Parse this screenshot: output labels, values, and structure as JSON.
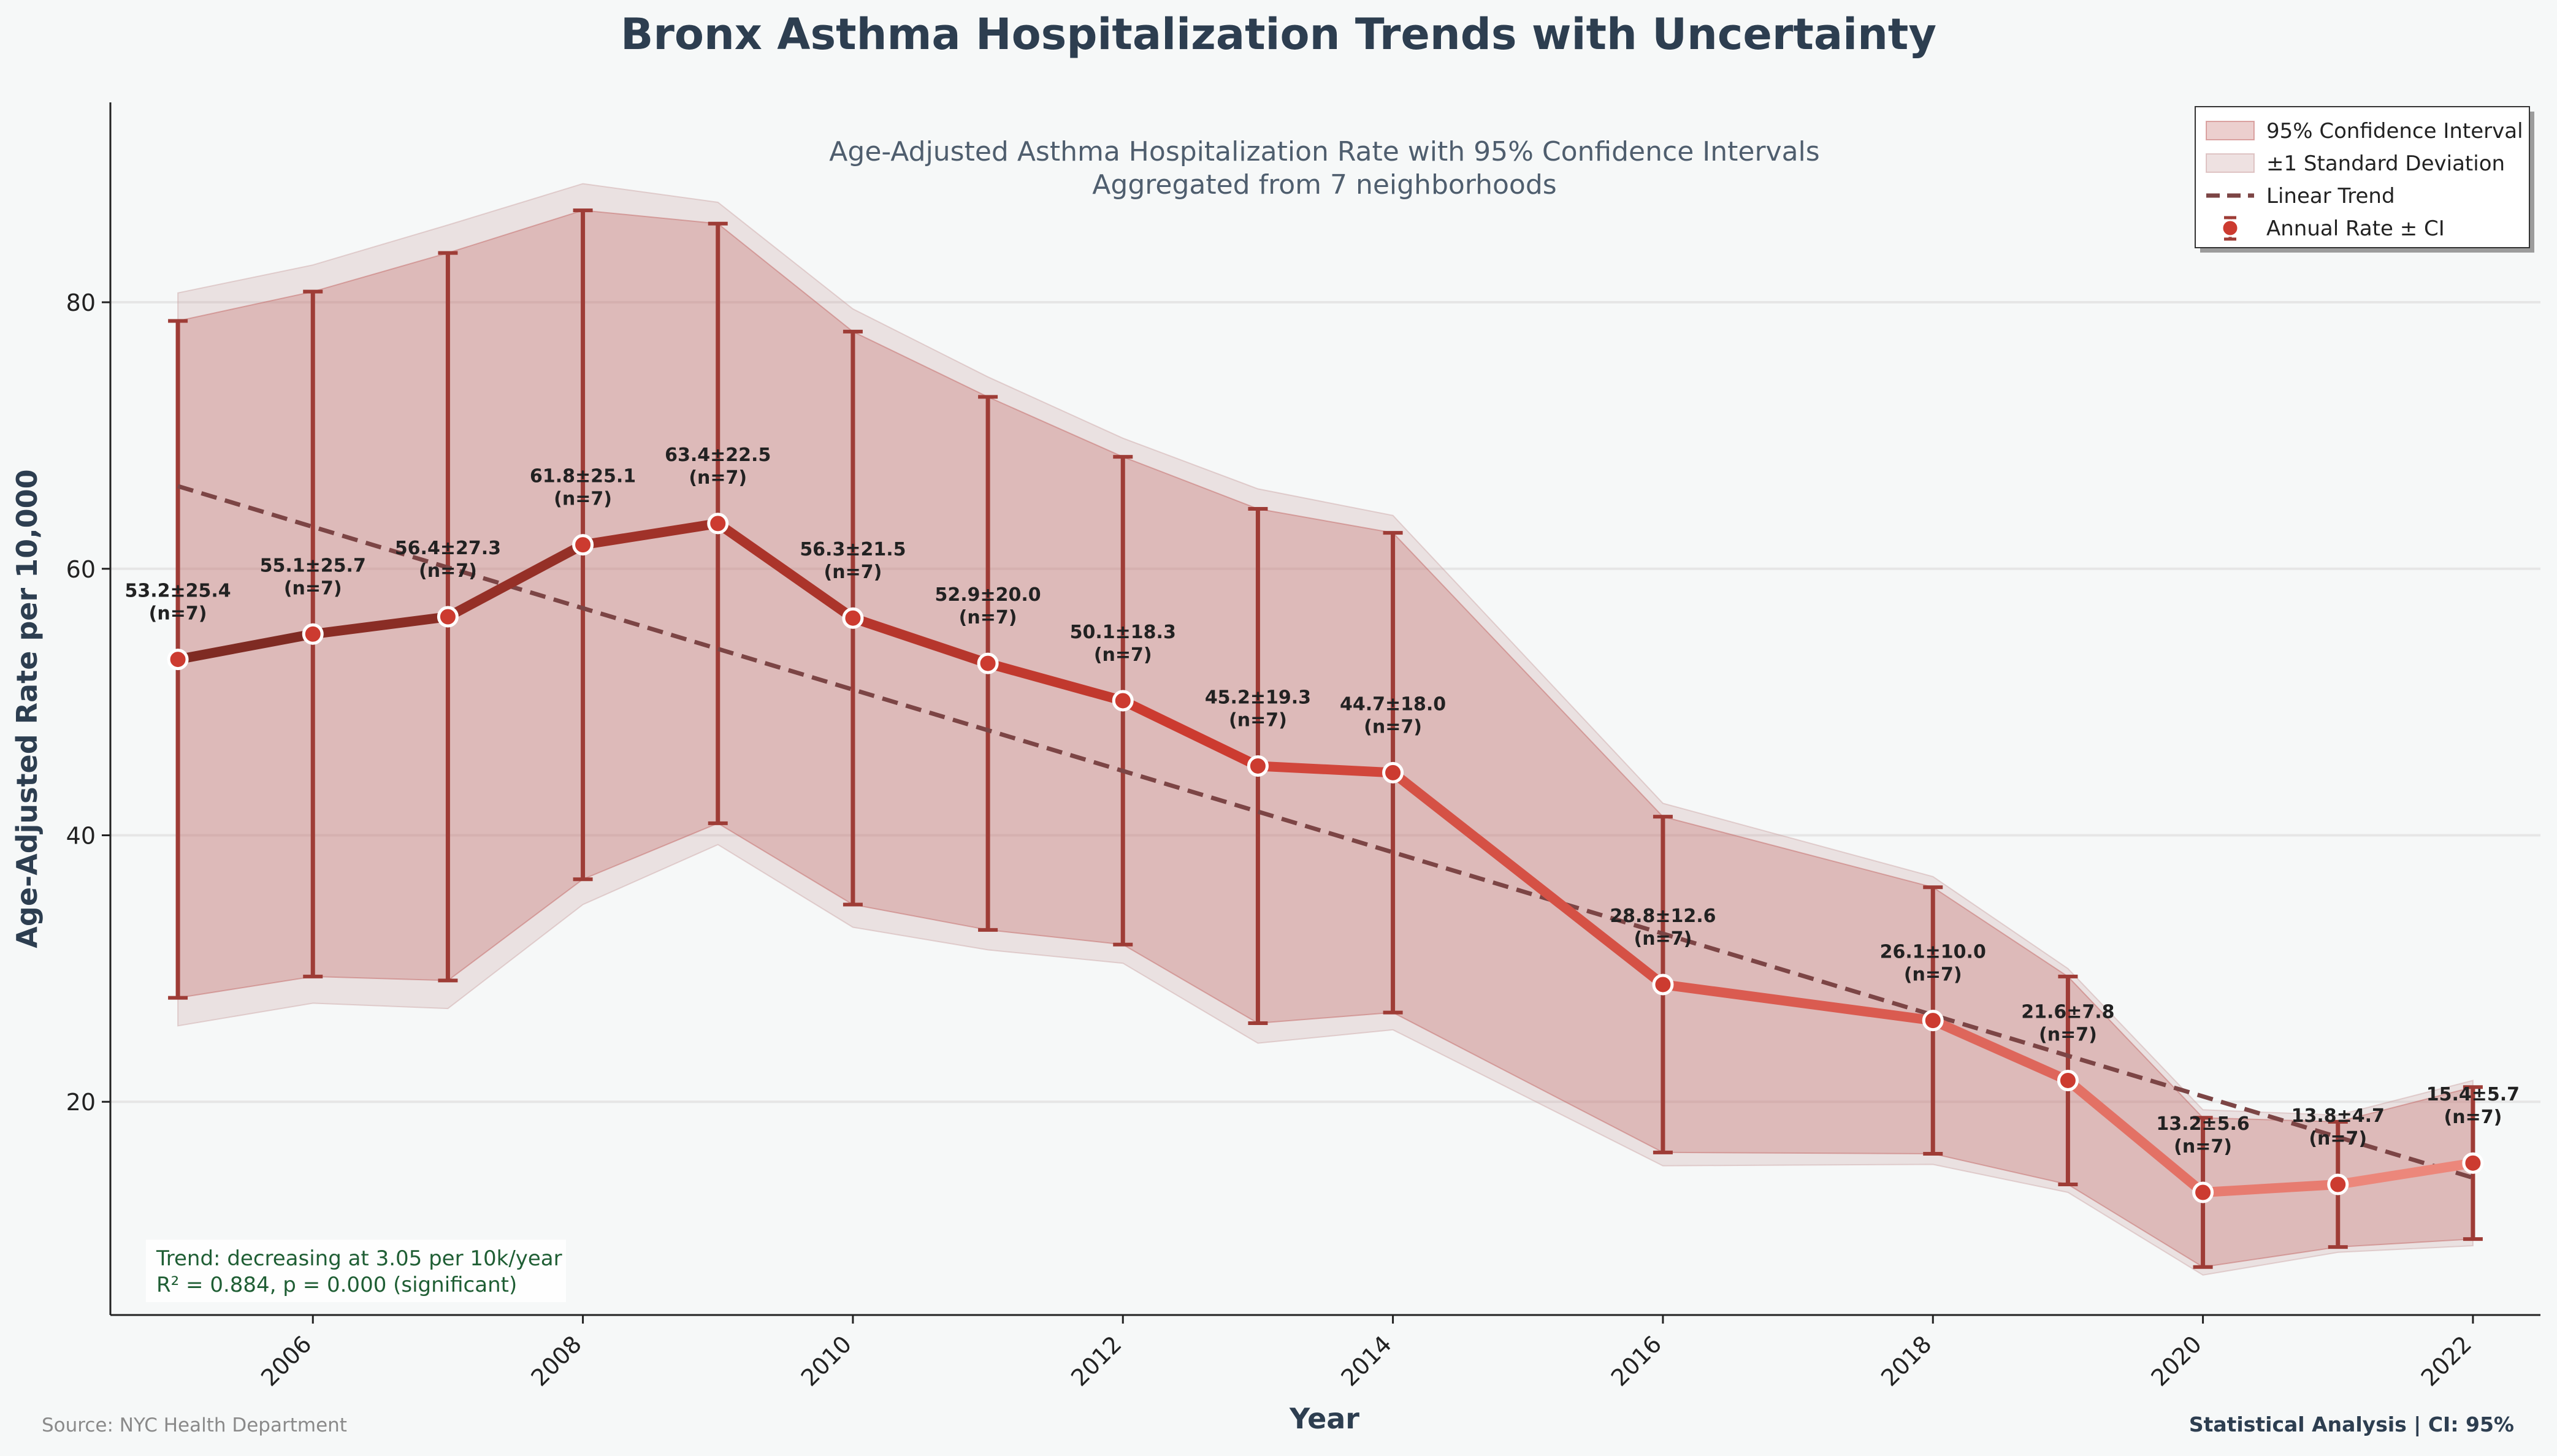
{
  "title": "Bronx Asthma Hospitalization Trends with Uncertainty",
  "subtitle_line1": "Age-Adjusted Asthma Hospitalization Rate with 95% Confidence Intervals",
  "subtitle_line2": "Aggregated from 7 neighborhoods",
  "xlabel": "Year",
  "ylabel": "Age-Adjusted Rate per 10,000",
  "source": "Source: NYC Health Department",
  "footer_right": "Statistical Analysis | CI: 95%",
  "stats_line1": "Trend: decreasing at 3.05 per 10k/year",
  "stats_line2": "R² = 0.884, p = 0.000 (significant)",
  "legend": [
    {
      "label": "95% Confidence Interval",
      "kind": "ci"
    },
    {
      "label": "±1 Standard Deviation",
      "kind": "sd"
    },
    {
      "label": "Linear Trend",
      "kind": "trend"
    },
    {
      "label": "Annual Rate ± CI",
      "kind": "point"
    }
  ],
  "colors": {
    "ci_fill": "#c0605e",
    "sd_fill": "#c89a9a",
    "error_bar": "#9e3c36",
    "trend": "#7c4545",
    "marker": "#cc3b30",
    "line_dark": "#7a2a22",
    "line_light": "#ee8c80",
    "title": "#2d3e50",
    "stats_text": "#1f5e34"
  },
  "chart_data": {
    "type": "line",
    "xlim": [
      2004.5,
      2022.5
    ],
    "ylim": [
      4,
      95
    ],
    "xticks": [
      2006,
      2008,
      2010,
      2012,
      2014,
      2016,
      2018,
      2020,
      2022
    ],
    "yticks": [
      20,
      40,
      60,
      80
    ],
    "grid": "y",
    "legend_position": "top-right",
    "x": [
      2005,
      2006,
      2007,
      2008,
      2009,
      2010,
      2011,
      2012,
      2013,
      2014,
      2016,
      2018,
      2019,
      2020,
      2021,
      2022
    ],
    "mean": [
      53.2,
      55.1,
      56.4,
      61.8,
      63.4,
      56.3,
      52.9,
      50.1,
      45.2,
      44.7,
      28.8,
      26.1,
      21.6,
      13.2,
      13.8,
      15.4
    ],
    "sd": [
      25.4,
      25.7,
      27.3,
      25.1,
      22.5,
      21.5,
      20.0,
      18.3,
      19.3,
      18.0,
      12.6,
      10.0,
      7.8,
      5.6,
      4.7,
      5.7
    ],
    "n": [
      7,
      7,
      7,
      7,
      7,
      7,
      7,
      7,
      7,
      7,
      7,
      7,
      7,
      7,
      7,
      7
    ],
    "ci_low": [
      27.8,
      29.4,
      29.1,
      36.7,
      40.9,
      34.8,
      32.9,
      31.8,
      25.9,
      26.7,
      16.2,
      16.1,
      13.8,
      7.6,
      9.1,
      9.7
    ],
    "ci_high": [
      78.6,
      80.8,
      83.7,
      86.9,
      85.9,
      77.8,
      72.9,
      68.4,
      64.5,
      62.7,
      41.4,
      36.1,
      29.4,
      18.8,
      18.5,
      21.1
    ],
    "sd_low": [
      25.7,
      27.4,
      27.0,
      34.8,
      39.3,
      33.1,
      31.4,
      30.4,
      24.4,
      25.4,
      15.2,
      15.3,
      13.2,
      7.0,
      8.7,
      9.2
    ],
    "sd_high": [
      80.7,
      82.8,
      85.8,
      88.9,
      87.5,
      79.5,
      74.4,
      69.8,
      66.0,
      64.0,
      42.4,
      36.9,
      30.0,
      19.4,
      19.0,
      21.6
    ],
    "data_labels": [
      "53.2±25.4",
      "55.1±25.7",
      "56.4±27.3",
      "61.8±25.1",
      "63.4±22.5",
      "56.3±21.5",
      "52.9±20.0",
      "50.1±18.3",
      "45.2±19.3",
      "44.7±18.0",
      "28.8±12.6",
      "26.1±10.0",
      "21.6±7.8",
      "13.2±5.6",
      "13.8±4.7",
      "15.4±5.7"
    ],
    "n_labels": [
      "(n=7)",
      "(n=7)",
      "(n=7)",
      "(n=7)",
      "(n=7)",
      "(n=7)",
      "(n=7)",
      "(n=7)",
      "(n=7)",
      "(n=7)",
      "(n=7)",
      "(n=7)",
      "(n=7)",
      "(n=7)",
      "(n=7)",
      "(n=7)"
    ],
    "trend": {
      "x": [
        2005,
        2022
      ],
      "y": [
        66.2,
        14.3
      ]
    }
  }
}
